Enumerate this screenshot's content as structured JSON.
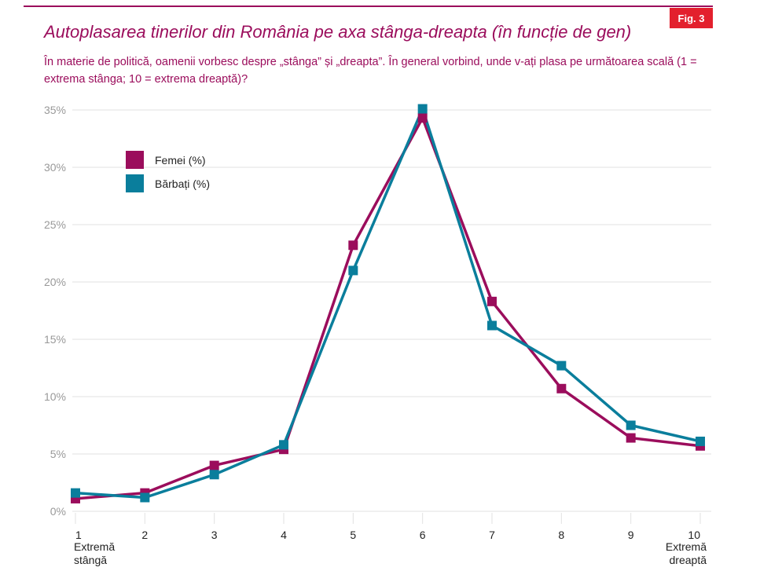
{
  "header": {
    "badge": "Fig. 3",
    "title": "Autoplasarea tinerilor din România pe axa stânga-dreapta (în funcție de gen)",
    "subtitle": "În materie de politică, oamenii vorbesc despre „stânga” și „dreapta”. În general vorbind, unde v-ați plasa pe următoarea scală (1 = extrema stânga; 10 = extrema dreaptă)?"
  },
  "chart_data": {
    "type": "line",
    "title": "Autoplasarea tinerilor din România pe axa stânga-dreapta (în funcție de gen)",
    "x": [
      1,
      2,
      3,
      4,
      5,
      6,
      7,
      8,
      9,
      10
    ],
    "x_tick_labels": [
      "1",
      "2",
      "3",
      "4",
      "5",
      "6",
      "7",
      "8",
      "9",
      "10"
    ],
    "x_end_labels": {
      "left": [
        "Extremă",
        "stângă"
      ],
      "right": [
        "Extremă",
        "dreaptă"
      ]
    },
    "y_ticks": [
      "0%",
      "5%",
      "10%",
      "15%",
      "20%",
      "25%",
      "30%",
      "35%"
    ],
    "ylim": [
      0,
      35
    ],
    "grid": true,
    "legend_position": "top-left",
    "series": [
      {
        "name": "Femei (%)",
        "color": "#9b0d5c",
        "values": [
          1.1,
          1.6,
          4.0,
          5.4,
          23.2,
          34.3,
          18.3,
          10.7,
          6.4,
          5.7
        ]
      },
      {
        "name": "Bărbați (%)",
        "color": "#0a7e9c",
        "values": [
          1.6,
          1.2,
          3.2,
          5.8,
          21.0,
          35.1,
          16.2,
          12.7,
          7.5,
          6.1
        ]
      }
    ]
  }
}
